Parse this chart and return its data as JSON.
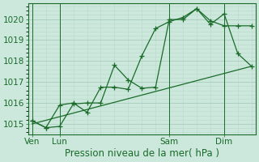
{
  "background_color": "#cce8dc",
  "grid_color_major": "#a8ccbc",
  "grid_color_minor": "#b8d8c8",
  "line_color": "#1a6b2a",
  "ylim": [
    1014.5,
    1020.75
  ],
  "yticks": [
    1015,
    1016,
    1017,
    1018,
    1019,
    1020
  ],
  "xlabel": "Pression niveau de la mer( hPa )",
  "xtick_labels": [
    "Ven",
    "Lun",
    "Sam",
    "Dim"
  ],
  "xtick_positions": [
    0,
    2,
    10,
    14
  ],
  "vline_positions": [
    0,
    2,
    10,
    14
  ],
  "xlim": [
    -0.3,
    16.3
  ],
  "line1_x": [
    0,
    1,
    2,
    3,
    4,
    5,
    6,
    7,
    8,
    9,
    10,
    11,
    12,
    13,
    14,
    15,
    16
  ],
  "line1_y": [
    1015.15,
    1014.82,
    1014.88,
    1015.95,
    1016.0,
    1016.0,
    1017.8,
    1017.1,
    1016.7,
    1016.75,
    1019.98,
    1019.98,
    1020.5,
    1019.92,
    1019.68,
    1019.68,
    1019.68
  ],
  "line2_x": [
    0,
    1,
    2,
    3,
    4,
    5,
    6,
    7,
    8,
    9,
    10,
    11,
    12,
    13,
    14,
    15,
    16
  ],
  "line2_y": [
    1015.15,
    1014.82,
    1015.9,
    1016.0,
    1015.55,
    1016.75,
    1016.75,
    1016.65,
    1018.25,
    1019.55,
    1019.88,
    1020.08,
    1020.5,
    1019.75,
    1020.25,
    1018.35,
    1017.75
  ],
  "line3_x": [
    0,
    16
  ],
  "line3_y": [
    1015.0,
    1017.75
  ],
  "line_width": 0.9,
  "marker_size": 4.0,
  "font_size": 7.5,
  "xlabel_fontsize": 8.5
}
